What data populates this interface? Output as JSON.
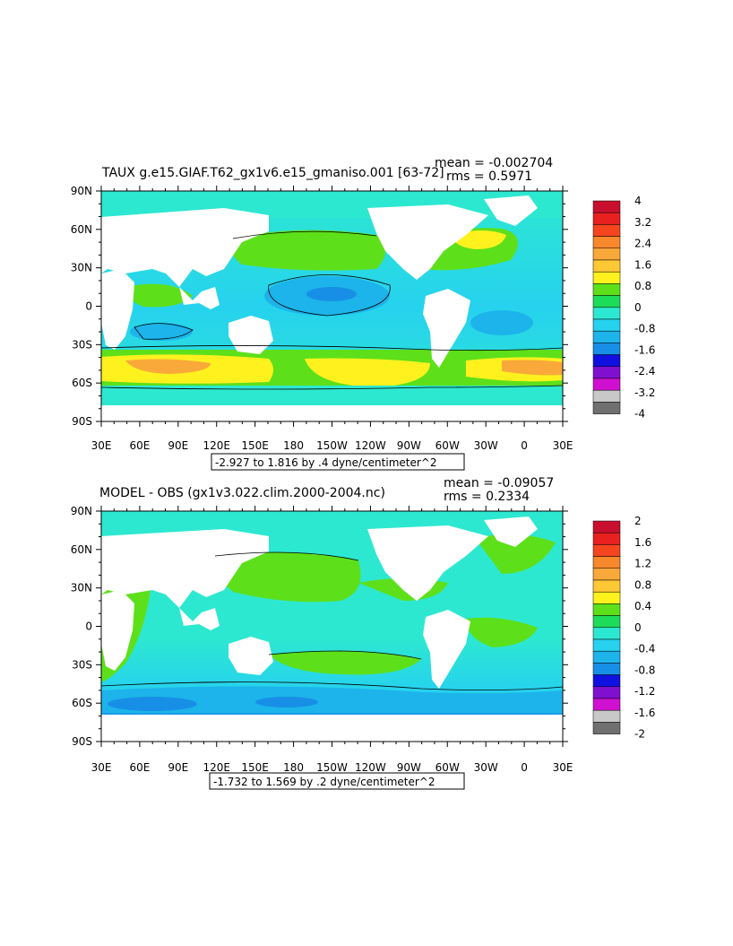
{
  "panels": [
    {
      "title": "TAUX g.e15.GIAF.T62_gx1v6.e15_gmaniso.001 [63-72]",
      "mean_text": "mean = -0.002704",
      "rms_text": "rms = 0.5971",
      "range_text": "-2.927 to 1.816 by .4 dyne/centimeter^2",
      "lon_ticks": [
        "30E",
        "60E",
        "90E",
        "120E",
        "150E",
        "180",
        "150W",
        "120W",
        "90W",
        "60W",
        "30W",
        "0",
        "30E"
      ],
      "lat_ticks": [
        "90N",
        "60N",
        "30N",
        "0",
        "30S",
        "60S",
        "90S"
      ],
      "colorbar": {
        "labels": [
          "4",
          "3.2",
          "2.4",
          "1.6",
          "0.8",
          "0",
          "-0.8",
          "-1.6",
          "-2.4",
          "-3.2",
          "-4"
        ],
        "colors": [
          "#c8102e",
          "#e8201f",
          "#f5451e",
          "#f7882b",
          "#f9a93a",
          "#ffc935",
          "#fff11e",
          "#5de01a",
          "#1ddc5a",
          "#2de8d0",
          "#26d2ee",
          "#1cb4ea",
          "#188fe6",
          "#1010e0",
          "#8010d0",
          "#d010d0",
          "#c8c8c8",
          "#707070"
        ]
      }
    },
    {
      "title": "MODEL - OBS (gx1v3.022.clim.2000-2004.nc)",
      "mean_text": "mean = -0.09057",
      "rms_text": "rms = 0.2334",
      "range_text": "-1.732 to 1.569 by .2 dyne/centimeter^2",
      "lon_ticks": [
        "30E",
        "60E",
        "90E",
        "120E",
        "150E",
        "180",
        "150W",
        "120W",
        "90W",
        "60W",
        "30W",
        "0",
        "30E"
      ],
      "lat_ticks": [
        "90N",
        "60N",
        "30N",
        "0",
        "30S",
        "60S",
        "90S"
      ],
      "colorbar": {
        "labels": [
          "2",
          "1.6",
          "1.2",
          "0.8",
          "0.4",
          "0",
          "-0.4",
          "-0.8",
          "-1.2",
          "-1.6",
          "-2"
        ],
        "colors": [
          "#c8102e",
          "#e8201f",
          "#f5451e",
          "#f7882b",
          "#f9a93a",
          "#ffc935",
          "#fff11e",
          "#5de01a",
          "#1ddc5a",
          "#2de8d0",
          "#26d2ee",
          "#1cb4ea",
          "#188fe6",
          "#1010e0",
          "#8010d0",
          "#d010d0",
          "#c8c8c8",
          "#707070"
        ]
      }
    }
  ]
}
